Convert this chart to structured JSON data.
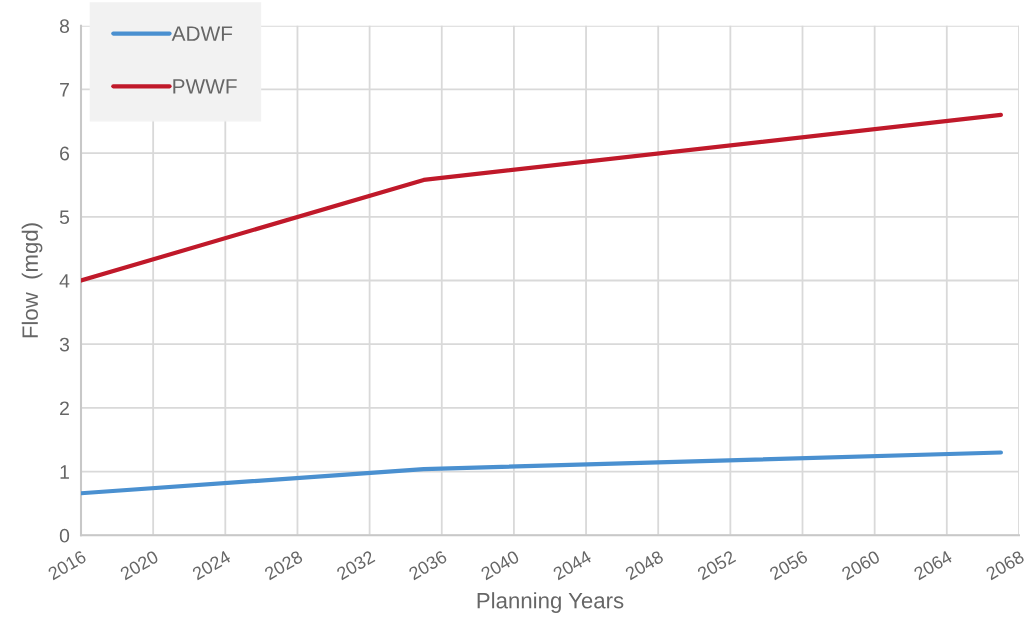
{
  "chart_data": {
    "type": "line",
    "xlabel": "Planning Years",
    "ylabel": "Flow  (mgd)",
    "x": [
      2016,
      2035,
      2067
    ],
    "series": [
      {
        "name": "ADWF",
        "color": "#4a90d0",
        "values": [
          0.66,
          1.04,
          1.3
        ]
      },
      {
        "name": "PWWF",
        "color": "#c0192a",
        "values": [
          4.0,
          5.58,
          6.6
        ]
      }
    ],
    "xlim": [
      2016,
      2068
    ],
    "xticks": [
      2016,
      2020,
      2024,
      2028,
      2032,
      2036,
      2040,
      2044,
      2048,
      2052,
      2056,
      2060,
      2064,
      2068
    ],
    "ylim": [
      0,
      8
    ],
    "yticks": [
      0,
      1,
      2,
      3,
      4,
      5,
      6,
      7,
      8
    ],
    "grid": true,
    "legend": "top left",
    "marker": "none",
    "line_style": "solid"
  }
}
